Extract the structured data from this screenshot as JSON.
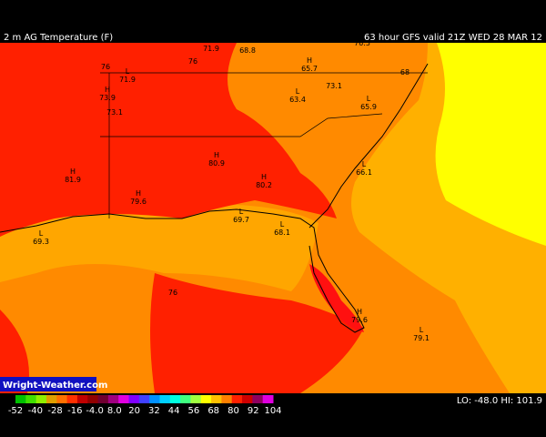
{
  "header": {
    "title": "2 m AG Temperature (F)",
    "model_info": "63 hour GFS valid 21Z WED 28 MAR 12"
  },
  "markers": [
    {
      "symbol": "L",
      "value": "71.9"
    },
    {
      "symbol": "",
      "value": "68.8"
    },
    {
      "symbol": "",
      "value": "76.5"
    },
    {
      "symbol": "",
      "value": "76"
    },
    {
      "symbol": "L",
      "value": "71.9"
    },
    {
      "symbol": "",
      "value": "76"
    },
    {
      "symbol": "H",
      "value": "65.7"
    },
    {
      "symbol": "",
      "value": "68"
    },
    {
      "symbol": "H",
      "value": "73.9"
    },
    {
      "symbol": "",
      "value": "73.1"
    },
    {
      "symbol": "",
      "value": "73.1"
    },
    {
      "symbol": "L",
      "value": "63.4"
    },
    {
      "symbol": "L",
      "value": "65.9"
    },
    {
      "symbol": "H",
      "value": "80.9"
    },
    {
      "symbol": "H",
      "value": "81.9"
    },
    {
      "symbol": "H",
      "value": "80.2"
    },
    {
      "symbol": "L",
      "value": "66.1"
    },
    {
      "symbol": "H",
      "value": "79.6"
    },
    {
      "symbol": "L",
      "value": "69.7"
    },
    {
      "symbol": "L",
      "value": "68.1"
    },
    {
      "symbol": "L",
      "value": "69.3"
    },
    {
      "symbol": "",
      "value": "76"
    },
    {
      "symbol": "H",
      "value": "79.6"
    },
    {
      "symbol": "L",
      "value": "79.1"
    }
  ],
  "footer": {
    "brand": "Wright-Weather.com",
    "colorbar_labels": [
      "-52",
      "-40",
      "-28",
      "-16",
      "-4.0",
      "8.0",
      "20",
      "32",
      "44",
      "56",
      "68",
      "80",
      "92",
      "104"
    ],
    "extremes": "LO: -48.0  HI: 101.9"
  }
}
